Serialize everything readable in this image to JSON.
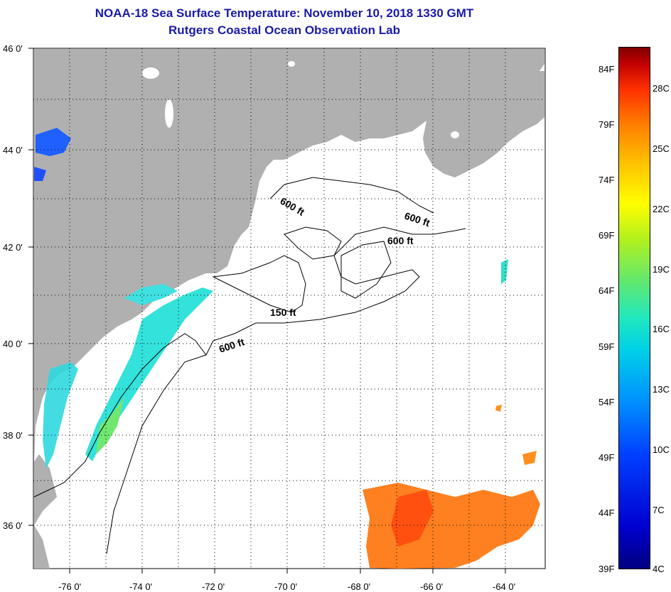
{
  "header": {
    "title": "NOAA-18 Sea Surface Temperature:  November 10, 2018 1330 GMT",
    "subtitle": "Rutgers Coastal Ocean Observation Lab"
  },
  "axes": {
    "lat_labels": [
      "46 0'",
      "44 0'",
      "42 0'",
      "40 0'",
      "38 0'",
      "36 0'"
    ],
    "lon_labels": [
      "-76 0'",
      "-74 0'",
      "-72 0'",
      "-70 0'",
      "-68 0'",
      "-66 0'",
      "-64 0'"
    ],
    "lat_range": [
      35,
      46
    ],
    "lon_range": [
      -77,
      -63
    ],
    "grid": "dotted"
  },
  "contours": {
    "labels": [
      "600 ft",
      "600 ft",
      "600 ft",
      "150 ft",
      "600 ft"
    ]
  },
  "colorbar": {
    "fahrenheit": [
      "84F",
      "79F",
      "74F",
      "69F",
      "64F",
      "59F",
      "54F",
      "49F",
      "44F",
      "39F"
    ],
    "celsius": [
      "28C",
      "25C",
      "22C",
      "19C",
      "16C",
      "13C",
      "10C",
      "7C",
      "4C"
    ]
  },
  "colors": {
    "land": "#b0b0b0",
    "ocean_nodata": "#ffffff",
    "title": "#1a1aa8"
  }
}
